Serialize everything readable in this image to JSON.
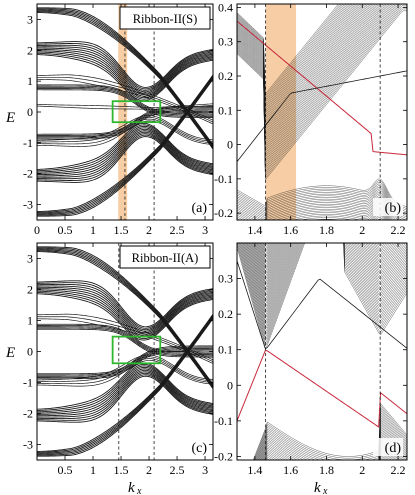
{
  "figure": {
    "y_symbol": "E",
    "x_symbol": "k",
    "x_subscript": "x"
  },
  "panels": [
    {
      "id": "a",
      "tag": "(a)",
      "label": "Ribbon-II(S)",
      "xlim": [
        0,
        3.14159
      ],
      "ylim": [
        -3.5,
        3.5
      ],
      "xticks": [
        0,
        0.5,
        1,
        1.5,
        2,
        2.5,
        3
      ],
      "xticklabels": [
        "0",
        "0.5",
        "1",
        "1.5",
        "2",
        "2.5",
        "3"
      ],
      "yticks": [
        -3,
        -2,
        -1,
        0,
        1,
        2,
        3
      ],
      "yticklabels": [
        "-3",
        "-2",
        "-1",
        "0",
        "1",
        "2",
        "3"
      ],
      "dashed_x": [
        1.57,
        2.09
      ],
      "shade_x": [
        1.45,
        1.61
      ],
      "box": {
        "x": [
          1.35,
          2.2
        ],
        "y": [
          -0.33,
          0.35
        ]
      },
      "kind": "full"
    },
    {
      "id": "b",
      "tag": "(b)",
      "xlim": [
        1.3,
        2.25
      ],
      "ylim": [
        -0.22,
        0.41
      ],
      "xticks": [
        1.4,
        1.6,
        1.8,
        2,
        2.2
      ],
      "xticklabels": [
        "1.4",
        "1.6",
        "1.8",
        "2",
        "2.2"
      ],
      "yticks": [
        -0.2,
        -0.1,
        0,
        0.1,
        0.2,
        0.3,
        0.4
      ],
      "yticklabels": [
        "-0.2",
        "-0.1",
        "0",
        "0.1",
        "0.2",
        "0.3",
        "0.4"
      ],
      "dashed_x": [
        1.46,
        2.1
      ],
      "shade_x": [
        1.46,
        1.63
      ],
      "kind": "zoom_s"
    },
    {
      "id": "c",
      "tag": "(c)",
      "label": "Ribbon-II(A)",
      "xlim": [
        0,
        3.14159
      ],
      "ylim": [
        -3.5,
        3.5
      ],
      "xticks": [
        0.5,
        1,
        1.5,
        2,
        2.5,
        3
      ],
      "xticklabels": [
        "0.5",
        "1",
        "1.5",
        "2",
        "2.5",
        "3"
      ],
      "yticks": [
        -3,
        -2,
        -1,
        0,
        1,
        2,
        3
      ],
      "yticklabels": [
        "-3",
        "-2",
        "-1",
        "0",
        "1",
        "2",
        "3"
      ],
      "dashed_x": [
        1.46,
        2.09
      ],
      "box": {
        "x": [
          1.35,
          2.2
        ],
        "y": [
          -0.38,
          0.48
        ]
      },
      "kind": "full"
    },
    {
      "id": "d",
      "tag": "(d)",
      "xlim": [
        1.3,
        2.25
      ],
      "ylim": [
        -0.21,
        0.4
      ],
      "xticks": [
        1.4,
        1.6,
        1.8,
        2,
        2.2
      ],
      "xticklabels": [
        "1.4",
        "1.6",
        "1.8",
        "2",
        "2.2"
      ],
      "yticks": [
        -0.2,
        -0.1,
        0,
        0.1,
        0.2,
        0.3
      ],
      "yticklabels": [
        "-0.2",
        "-0.1",
        "0",
        "0.1",
        "0.2",
        "0.3"
      ],
      "dashed_x": [
        1.46,
        2.1
      ],
      "kind": "zoom_a"
    }
  ],
  "colors": {
    "ink": "#1a1a1a",
    "edge_state": "#c8283c",
    "shade": "#f5c89a",
    "box": "#2fb82f"
  },
  "chart_data": [
    {
      "type": "line",
      "panel": "a",
      "description_label": "Ribbon-II(S)",
      "x": [
        0.0,
        0.5,
        1.0,
        1.5,
        2.0,
        2.5,
        3.14
      ],
      "series": [
        {
          "values": [
            3.3,
            3.1,
            2.5,
            1.0,
            0.3,
            -0.5,
            -0.9
          ]
        },
        {
          "values": [
            2.0,
            1.9,
            1.6,
            0.9,
            0.4,
            0.9,
            1.2
          ]
        },
        {
          "values": [
            1.15,
            1.05,
            0.85,
            0.4,
            0.0,
            -0.1,
            -0.1
          ]
        },
        {
          "values": [
            0.25,
            0.2,
            0.15,
            0.05,
            0.0,
            0.15,
            0.3
          ]
        },
        {
          "values": [
            -1.0,
            -0.95,
            -0.8,
            -0.4,
            0.0,
            0.2,
            0.2
          ]
        },
        {
          "values": [
            -2.0,
            -1.9,
            -1.6,
            -0.9,
            -0.4,
            -0.9,
            -1.2
          ]
        },
        {
          "values": [
            -3.3,
            -3.1,
            -2.5,
            -1.5,
            -1.0,
            -0.7,
            -0.6
          ]
        }
      ],
      "xlim": [
        0,
        3.14159
      ],
      "ylim": [
        -3.5,
        3.5
      ]
    },
    {
      "type": "line",
      "panel": "b",
      "x": [
        1.3,
        1.45,
        1.6,
        1.8,
        2.0,
        2.1,
        2.25
      ],
      "series": [
        {
          "name": "",
          "values": [
            0.25,
            0.18,
            0.12,
            0.04,
            -0.01,
            -0.02,
            0.0
          ]
        },
        {
          "name": "",
          "values": [
            -0.12,
            -0.07,
            0.02,
            0.15,
            0.26,
            0.3,
            0.34
          ]
        }
      ],
      "xlim": [
        1.3,
        2.25
      ],
      "ylim": [
        -0.22,
        0.41
      ]
    },
    {
      "type": "line",
      "panel": "c",
      "description_label": "Ribbon-II(A)",
      "x": [
        0.0,
        0.5,
        1.0,
        1.5,
        2.0,
        2.5,
        3.14
      ],
      "series": [
        {
          "values": [
            3.3,
            3.1,
            2.5,
            1.0,
            0.3,
            -0.5,
            -0.9
          ]
        },
        {
          "values": [
            2.0,
            1.9,
            1.6,
            0.9,
            0.4,
            0.9,
            1.2
          ]
        },
        {
          "values": [
            1.15,
            1.05,
            0.85,
            0.4,
            0.0,
            -0.1,
            -0.1
          ]
        },
        {
          "values": [
            -1.0,
            -0.95,
            -0.8,
            -0.4,
            0.0,
            0.2,
            0.2
          ]
        },
        {
          "values": [
            -2.0,
            -1.9,
            -1.6,
            -0.9,
            -0.4,
            -0.9,
            -1.2
          ]
        },
        {
          "values": [
            -3.3,
            -3.1,
            -2.5,
            -1.5,
            -1.0,
            -0.7,
            -0.6
          ]
        }
      ],
      "xlim": [
        0,
        3.14159
      ],
      "ylim": [
        -3.5,
        3.5
      ]
    },
    {
      "type": "line",
      "panel": "d",
      "x": [
        1.3,
        1.46,
        1.6,
        1.8,
        2.0,
        2.1,
        2.25
      ],
      "series": [
        {
          "values": [
            0.35,
            0.13,
            0.22,
            0.3,
            0.12,
            0.0,
            0.15
          ]
        },
        {
          "values": [
            -0.05,
            0.1,
            0.05,
            -0.05,
            -0.1,
            -0.02,
            -0.1
          ]
        }
      ],
      "xlim": [
        1.3,
        2.25
      ],
      "ylim": [
        -0.21,
        0.4
      ]
    }
  ]
}
